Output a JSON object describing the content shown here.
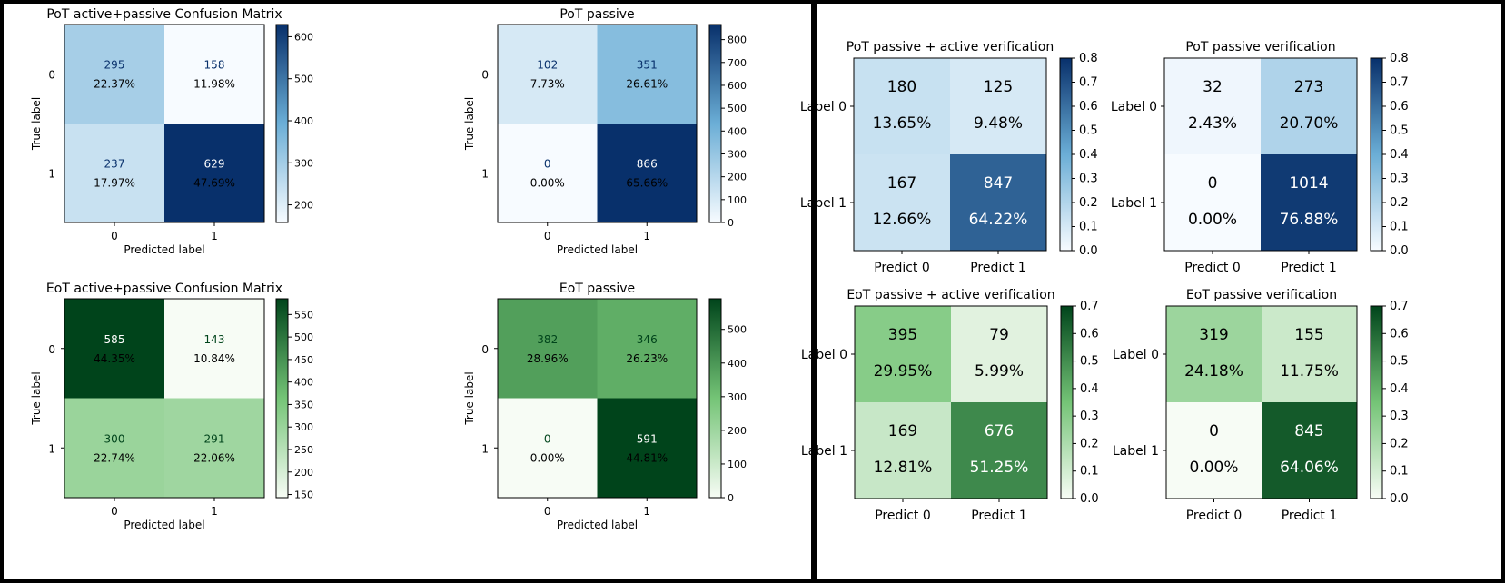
{
  "colors": {
    "blue_low": "#f7fbff",
    "blue_high": "#08306b",
    "green_low": "#f7fcf5",
    "green_high": "#00441b",
    "frame": "#000000",
    "background": "#ffffff"
  },
  "chart_data": [
    {
      "type": "heatmap",
      "panel": "left",
      "style": "sklearn",
      "colormap": "Blues",
      "title": "PoT active+passive Confusion Matrix",
      "xlabel": "Predicted label",
      "ylabel": "True label",
      "x_ticklabels": [
        "0",
        "1"
      ],
      "y_ticklabels": [
        "0",
        "1"
      ],
      "counts": [
        [
          295,
          158
        ],
        [
          237,
          629
        ]
      ],
      "percents": [
        [
          "22.37%",
          "11.98%"
        ],
        [
          "17.97%",
          "47.69%"
        ]
      ],
      "vmin": 158,
      "vmax": 629,
      "colorbar_ticks": [
        200,
        300,
        400,
        500,
        600
      ]
    },
    {
      "type": "heatmap",
      "panel": "left",
      "style": "sklearn",
      "colormap": "Blues",
      "title": "PoT passive",
      "xlabel": "Predicted label",
      "ylabel": "True label",
      "x_ticklabels": [
        "0",
        "1"
      ],
      "y_ticklabels": [
        "0",
        "1"
      ],
      "counts": [
        [
          102,
          351
        ],
        [
          0,
          866
        ]
      ],
      "percents": [
        [
          "7.73%",
          "26.61%"
        ],
        [
          "0.00%",
          "65.66%"
        ]
      ],
      "vmin": 0,
      "vmax": 866,
      "colorbar_ticks": [
        0,
        100,
        200,
        300,
        400,
        500,
        600,
        700,
        800
      ]
    },
    {
      "type": "heatmap",
      "panel": "left",
      "style": "sklearn",
      "colormap": "Greens",
      "title": "EoT active+passive Confusion Matrix",
      "xlabel": "Predicted label",
      "ylabel": "True label",
      "x_ticklabels": [
        "0",
        "1"
      ],
      "y_ticklabels": [
        "0",
        "1"
      ],
      "counts": [
        [
          585,
          143
        ],
        [
          300,
          291
        ]
      ],
      "percents": [
        [
          "44.35%",
          "10.84%"
        ],
        [
          "22.74%",
          "22.06%"
        ]
      ],
      "vmin": 143,
      "vmax": 585,
      "colorbar_ticks": [
        150,
        200,
        250,
        300,
        350,
        400,
        450,
        500,
        550
      ]
    },
    {
      "type": "heatmap",
      "panel": "left",
      "style": "sklearn",
      "colormap": "Greens",
      "title": "EoT passive",
      "xlabel": "Predicted label",
      "ylabel": "True label",
      "x_ticklabels": [
        "0",
        "1"
      ],
      "y_ticklabels": [
        "0",
        "1"
      ],
      "counts": [
        [
          382,
          346
        ],
        [
          0,
          591
        ]
      ],
      "percents": [
        [
          "28.96%",
          "26.23%"
        ],
        [
          "0.00%",
          "44.81%"
        ]
      ],
      "vmin": 0,
      "vmax": 591,
      "colorbar_ticks": [
        0,
        100,
        200,
        300,
        400,
        500
      ]
    },
    {
      "type": "heatmap",
      "panel": "right",
      "style": "paper",
      "colormap": "Blues",
      "title": "PoT passive + active verification",
      "x_ticklabels": [
        "Predict 0",
        "Predict 1"
      ],
      "y_ticklabels": [
        "Label 0",
        "Label 1"
      ],
      "counts": [
        [
          180,
          125
        ],
        [
          167,
          847
        ]
      ],
      "percents": [
        [
          "13.65%",
          "9.48%"
        ],
        [
          "12.66%",
          "64.22%"
        ]
      ],
      "vmin": 0,
      "vmax": 0.8,
      "colorbar_ticks": [
        "0.0",
        "0.1",
        "0.2",
        "0.3",
        "0.4",
        "0.5",
        "0.6",
        "0.7",
        "0.8"
      ]
    },
    {
      "type": "heatmap",
      "panel": "right",
      "style": "paper",
      "colormap": "Blues",
      "title": "PoT passive verification",
      "x_ticklabels": [
        "Predict 0",
        "Predict 1"
      ],
      "y_ticklabels": [
        "Label 0",
        "Label 1"
      ],
      "counts": [
        [
          32,
          273
        ],
        [
          0,
          1014
        ]
      ],
      "percents": [
        [
          "2.43%",
          "20.70%"
        ],
        [
          "0.00%",
          "76.88%"
        ]
      ],
      "vmin": 0,
      "vmax": 0.8,
      "colorbar_ticks": [
        "0.0",
        "0.1",
        "0.2",
        "0.3",
        "0.4",
        "0.5",
        "0.6",
        "0.7",
        "0.8"
      ]
    },
    {
      "type": "heatmap",
      "panel": "right",
      "style": "paper",
      "colormap": "Greens",
      "title": "EoT passive + active verification",
      "x_ticklabels": [
        "Predict 0",
        "Predict 1"
      ],
      "y_ticklabels": [
        "Label 0",
        "Label 1"
      ],
      "counts": [
        [
          395,
          79
        ],
        [
          169,
          676
        ]
      ],
      "percents": [
        [
          "29.95%",
          "5.99%"
        ],
        [
          "12.81%",
          "51.25%"
        ]
      ],
      "vmin": 0,
      "vmax": 0.7,
      "colorbar_ticks": [
        "0.0",
        "0.1",
        "0.2",
        "0.3",
        "0.4",
        "0.5",
        "0.6",
        "0.7"
      ]
    },
    {
      "type": "heatmap",
      "panel": "right",
      "style": "paper",
      "colormap": "Greens",
      "title": "EoT passive verification",
      "x_ticklabels": [
        "Predict 0",
        "Predict 1"
      ],
      "y_ticklabels": [
        "Label 0",
        "Label 1"
      ],
      "counts": [
        [
          319,
          155
        ],
        [
          0,
          845
        ]
      ],
      "percents": [
        [
          "24.18%",
          "11.75%"
        ],
        [
          "0.00%",
          "64.06%"
        ]
      ],
      "vmin": 0,
      "vmax": 0.7,
      "colorbar_ticks": [
        "0.0",
        "0.1",
        "0.2",
        "0.3",
        "0.4",
        "0.5",
        "0.6",
        "0.7"
      ]
    }
  ]
}
